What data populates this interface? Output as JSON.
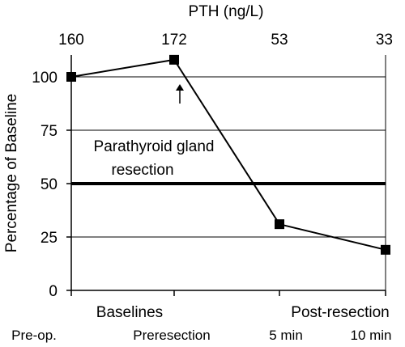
{
  "chart_data": {
    "type": "line",
    "top_axis_title": "PTH (ng/L)",
    "top_axis_values": [
      "160",
      "172",
      "53",
      "33"
    ],
    "ylabel": "Percentage of Baseline",
    "ylim": [
      0,
      100
    ],
    "yticks": [
      "0",
      "25",
      "50",
      "75",
      "100"
    ],
    "categories": [
      "Pre-op.",
      "Preresection",
      "5 min",
      "10 min"
    ],
    "group_labels": [
      "Baselines",
      "Post-resection"
    ],
    "series": [
      {
        "values": [
          100,
          108,
          31,
          19
        ]
      }
    ],
    "reference_line": {
      "value": 50,
      "label_line1": "Parathyroid gland",
      "label_line2": "resection"
    },
    "arrow_annotation": {
      "category_index": 1,
      "direction": "up"
    },
    "grid": true,
    "colors": {
      "line": "#000000",
      "marker": "#000000",
      "grid": "#000000"
    }
  }
}
